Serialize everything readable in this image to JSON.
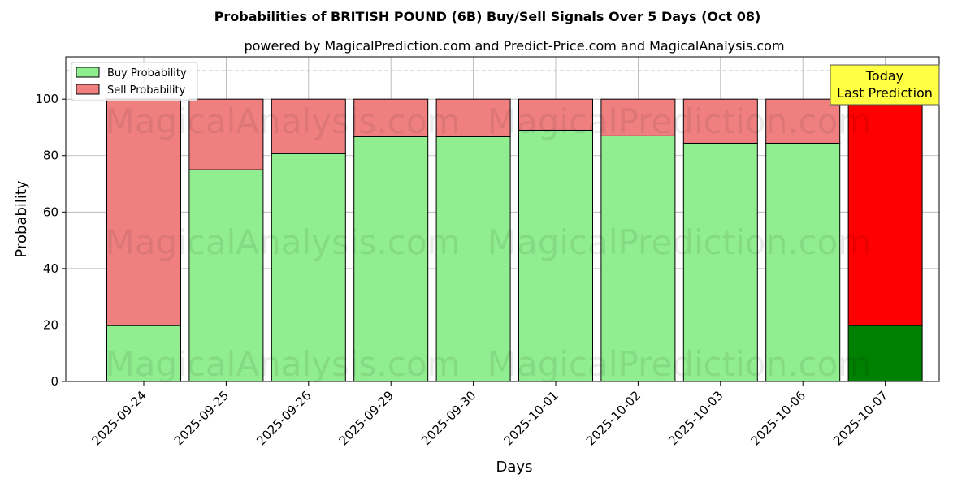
{
  "chart_data": {
    "type": "bar",
    "stacked": true,
    "title": "Probabilities of BRITISH POUND (6B) Buy/Sell Signals Over 5 Days (Oct 08)",
    "subtitle": "powered by MagicalPrediction.com and Predict-Price.com and MagicalAnalysis.com",
    "xlabel": "Days",
    "ylabel": "Probability",
    "ylim": [
      0,
      115
    ],
    "yticks": [
      0,
      20,
      40,
      60,
      80,
      100
    ],
    "grid": true,
    "legend_position": "top-left",
    "reference_line": 110,
    "categories": [
      "2025-09-24",
      "2025-09-25",
      "2025-09-26",
      "2025-09-29",
      "2025-09-30",
      "2025-10-01",
      "2025-10-02",
      "2025-10-03",
      "2025-10-06",
      "2025-10-07"
    ],
    "series": [
      {
        "name": "Buy Probability",
        "values": [
          19.8,
          75.0,
          80.7,
          86.7,
          86.7,
          89.0,
          87.0,
          84.4,
          84.4,
          19.8
        ],
        "color": "#90ee90",
        "highlight_color": "#008000"
      },
      {
        "name": "Sell Probability",
        "values": [
          80.2,
          25.0,
          19.3,
          13.3,
          13.3,
          11.0,
          13.0,
          15.6,
          15.6,
          80.2
        ],
        "color": "#f08080",
        "highlight_color": "#ff0000"
      }
    ],
    "annotation": {
      "text_line1": "Today",
      "text_line2": "Last Prediction",
      "category_index": 9,
      "color": "#ffff44"
    },
    "watermarks": [
      "MagicalAnalysis.com",
      "MagicalPrediction.com"
    ]
  }
}
